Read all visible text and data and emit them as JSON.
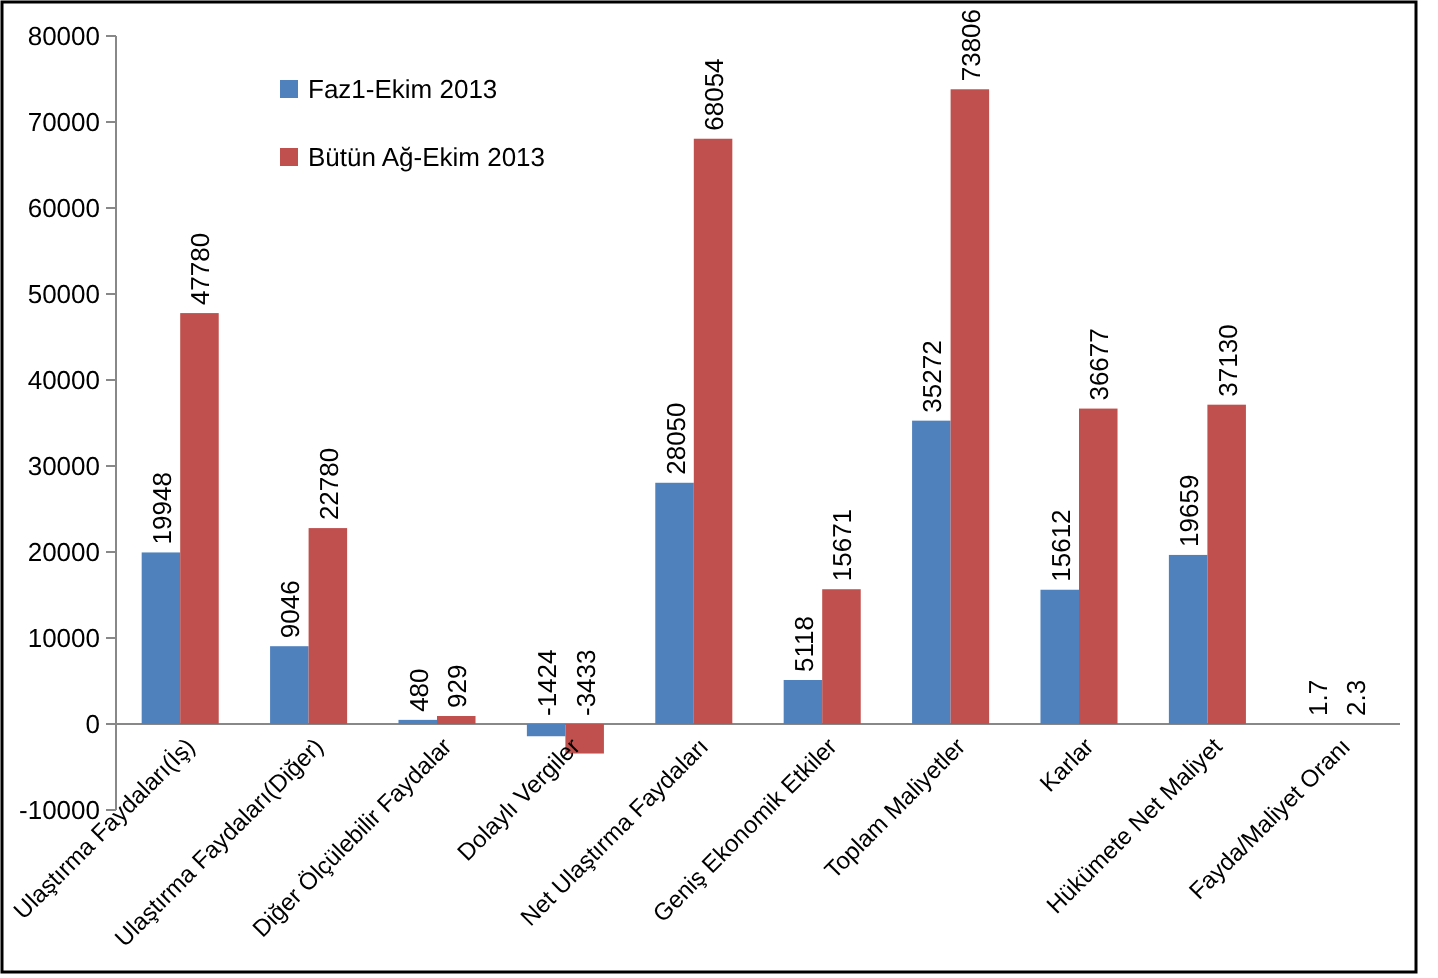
{
  "chart_data": {
    "type": "bar",
    "categories": [
      "Ulaştırma Faydaları(İş)",
      "Ulaştırma Faydaları(Diğer)",
      "Diğer Ölçülebilir Faydalar",
      "Dolaylı Vergiler",
      "Net Ulaştırma Faydaları",
      "Geniş Ekonomik Etkiler",
      "Toplam Maliyetler",
      "Karlar",
      "Hükümete Net Maliyet",
      "Fayda/Maliyet Oranı"
    ],
    "series": [
      {
        "name": "Faz1-Ekim 2013",
        "color": "#4f81bd",
        "values": [
          19948,
          9046,
          480,
          -1424,
          28050,
          5118,
          35272,
          15612,
          19659,
          1.7
        ]
      },
      {
        "name": "Bütün Ağ-Ekim 2013",
        "color": "#c0504d",
        "values": [
          47780,
          22780,
          929,
          -3433,
          68054,
          15671,
          73806,
          36677,
          37130,
          2.3
        ]
      }
    ],
    "ylim": [
      -10000,
      80000
    ],
    "yticks": [
      -10000,
      0,
      10000,
      20000,
      30000,
      40000,
      50000,
      60000,
      70000,
      80000
    ],
    "data_labels": true,
    "legend": "top left",
    "grid": false
  }
}
